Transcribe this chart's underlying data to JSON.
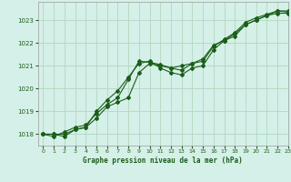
{
  "title": "Graphe pression niveau de la mer (hPa)",
  "bg_color": "#d5f0e8",
  "grid_color": "#b0d8c0",
  "line_color": "#1a5e1a",
  "xlim": [
    -0.5,
    23
  ],
  "ylim": [
    1017.5,
    1023.8
  ],
  "yticks": [
    1018,
    1019,
    1020,
    1021,
    1022,
    1023
  ],
  "xticks": [
    0,
    1,
    2,
    3,
    4,
    5,
    6,
    7,
    8,
    9,
    10,
    11,
    12,
    13,
    14,
    15,
    16,
    17,
    18,
    19,
    20,
    21,
    22,
    23
  ],
  "series1_x": [
    0,
    1,
    2,
    3,
    4,
    5,
    6,
    7,
    8,
    9,
    10,
    11,
    12,
    13,
    14,
    15,
    16,
    17,
    18,
    19,
    20,
    21,
    22,
    23
  ],
  "series1_y": [
    1018.0,
    1018.0,
    1017.9,
    1018.2,
    1018.3,
    1018.7,
    1019.2,
    1019.4,
    1019.6,
    1020.7,
    1021.1,
    1021.0,
    1020.9,
    1020.8,
    1021.1,
    1021.3,
    1021.9,
    1022.1,
    1022.3,
    1022.8,
    1023.0,
    1023.2,
    1023.3,
    1023.3
  ],
  "series2_x": [
    0,
    1,
    2,
    3,
    4,
    5,
    6,
    7,
    8,
    9,
    10,
    11,
    12,
    13,
    14,
    15,
    16,
    17,
    18,
    19,
    20,
    21,
    22,
    23
  ],
  "series2_y": [
    1018.0,
    1018.0,
    1018.0,
    1018.2,
    1018.3,
    1019.0,
    1019.5,
    1019.9,
    1020.5,
    1021.1,
    1021.2,
    1020.9,
    1020.7,
    1020.6,
    1020.9,
    1021.0,
    1021.7,
    1022.1,
    1022.4,
    1022.8,
    1023.0,
    1023.2,
    1023.4,
    1023.4
  ],
  "series3_x": [
    0,
    1,
    2,
    3,
    4,
    5,
    6,
    7,
    8,
    9,
    10,
    11,
    12,
    13,
    14,
    15,
    16,
    17,
    18,
    19,
    20,
    21,
    22,
    23
  ],
  "series3_y": [
    1018.0,
    1017.9,
    1018.1,
    1018.3,
    1018.4,
    1018.9,
    1019.3,
    1019.6,
    1020.4,
    1021.2,
    1021.15,
    1021.05,
    1020.9,
    1021.0,
    1021.1,
    1021.2,
    1021.85,
    1022.15,
    1022.45,
    1022.9,
    1023.1,
    1023.25,
    1023.4,
    1023.35
  ]
}
